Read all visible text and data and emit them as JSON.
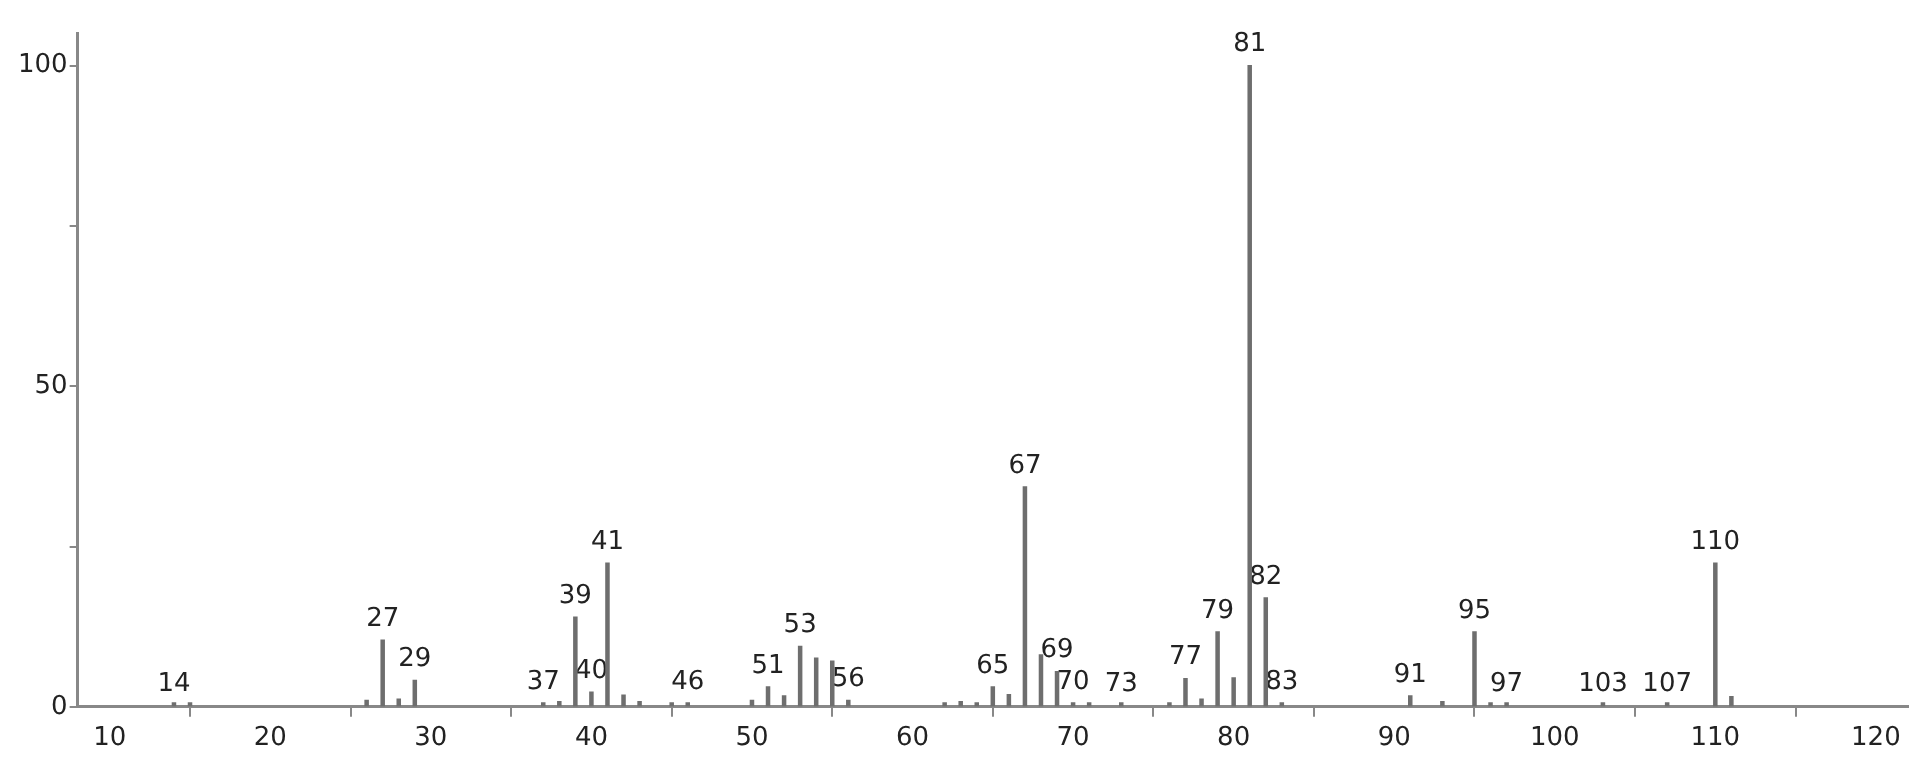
{
  "chart_data": {
    "type": "bar",
    "x": [
      14,
      15,
      26,
      27,
      28,
      29,
      37,
      38,
      39,
      40,
      41,
      42,
      43,
      45,
      46,
      50,
      51,
      52,
      53,
      54,
      55,
      56,
      62,
      63,
      64,
      65,
      66,
      67,
      68,
      69,
      70,
      71,
      73,
      76,
      77,
      78,
      79,
      80,
      81,
      82,
      83,
      91,
      93,
      95,
      96,
      97,
      103,
      107,
      110,
      111
    ],
    "values": [
      0.3,
      0.3,
      1,
      10.4,
      1.2,
      4.1,
      0.5,
      0.8,
      14,
      2.3,
      22.4,
      1.8,
      0.8,
      0.3,
      0.5,
      1,
      3.1,
      1.7,
      9.4,
      7.6,
      7.1,
      1,
      0.3,
      0.8,
      0.5,
      3.1,
      1.9,
      34.3,
      8.1,
      5.5,
      0.5,
      0.3,
      0.3,
      0.3,
      4.4,
      1.2,
      11.7,
      4.5,
      100,
      17,
      0.5,
      1.7,
      0.8,
      11.7,
      0.5,
      0.3,
      0.2,
      0.3,
      22.4,
      1.6
    ],
    "color": "#6e6e6e",
    "xlim": [
      8,
      122
    ],
    "xticks": [
      10,
      20,
      30,
      40,
      50,
      60,
      70,
      80,
      90,
      100,
      110,
      120
    ],
    "ylim": [
      0,
      105
    ],
    "yticks": [
      0,
      {
        "value": 25,
        "label": null
      },
      50,
      {
        "value": 75,
        "label": null
      },
      100
    ],
    "grid": false,
    "legend": false,
    "annotations": [
      {
        "text": "14",
        "x": 14,
        "y": 0.3
      },
      {
        "text": "27",
        "x": 27,
        "y": 10.4
      },
      {
        "text": "29",
        "x": 29,
        "y": 4.1
      },
      {
        "text": "37",
        "x": 37,
        "y": 0.5
      },
      {
        "text": "39",
        "x": 39,
        "y": 14
      },
      {
        "text": "40",
        "x": 40,
        "y": 2.3
      },
      {
        "text": "41",
        "x": 41,
        "y": 22.4
      },
      {
        "text": "46",
        "x": 46,
        "y": 0.5
      },
      {
        "text": "51",
        "x": 51,
        "y": 3.1
      },
      {
        "text": "53",
        "x": 53,
        "y": 9.4
      },
      {
        "text": "56",
        "x": 56,
        "y": 1
      },
      {
        "text": "65",
        "x": 65,
        "y": 3.1
      },
      {
        "text": "67",
        "x": 67,
        "y": 34.3
      },
      {
        "text": "69",
        "x": 69,
        "y": 5.5
      },
      {
        "text": "70",
        "x": 70,
        "y": 0.5
      },
      {
        "text": "73",
        "x": 73,
        "y": 0.3
      },
      {
        "text": "77",
        "x": 77,
        "y": 4.4
      },
      {
        "text": "79",
        "x": 79,
        "y": 11.7
      },
      {
        "text": "81",
        "x": 81,
        "y": 100
      },
      {
        "text": "82",
        "x": 82,
        "y": 17
      },
      {
        "text": "83",
        "x": 83,
        "y": 0.5
      },
      {
        "text": "91",
        "x": 91,
        "y": 1.7
      },
      {
        "text": "95",
        "x": 95,
        "y": 11.7
      },
      {
        "text": "97",
        "x": 97,
        "y": 0.3
      },
      {
        "text": "103",
        "x": 103,
        "y": 0.2
      },
      {
        "text": "107",
        "x": 107,
        "y": 0.3
      },
      {
        "text": "110",
        "x": 110,
        "y": 22.4
      }
    ]
  }
}
